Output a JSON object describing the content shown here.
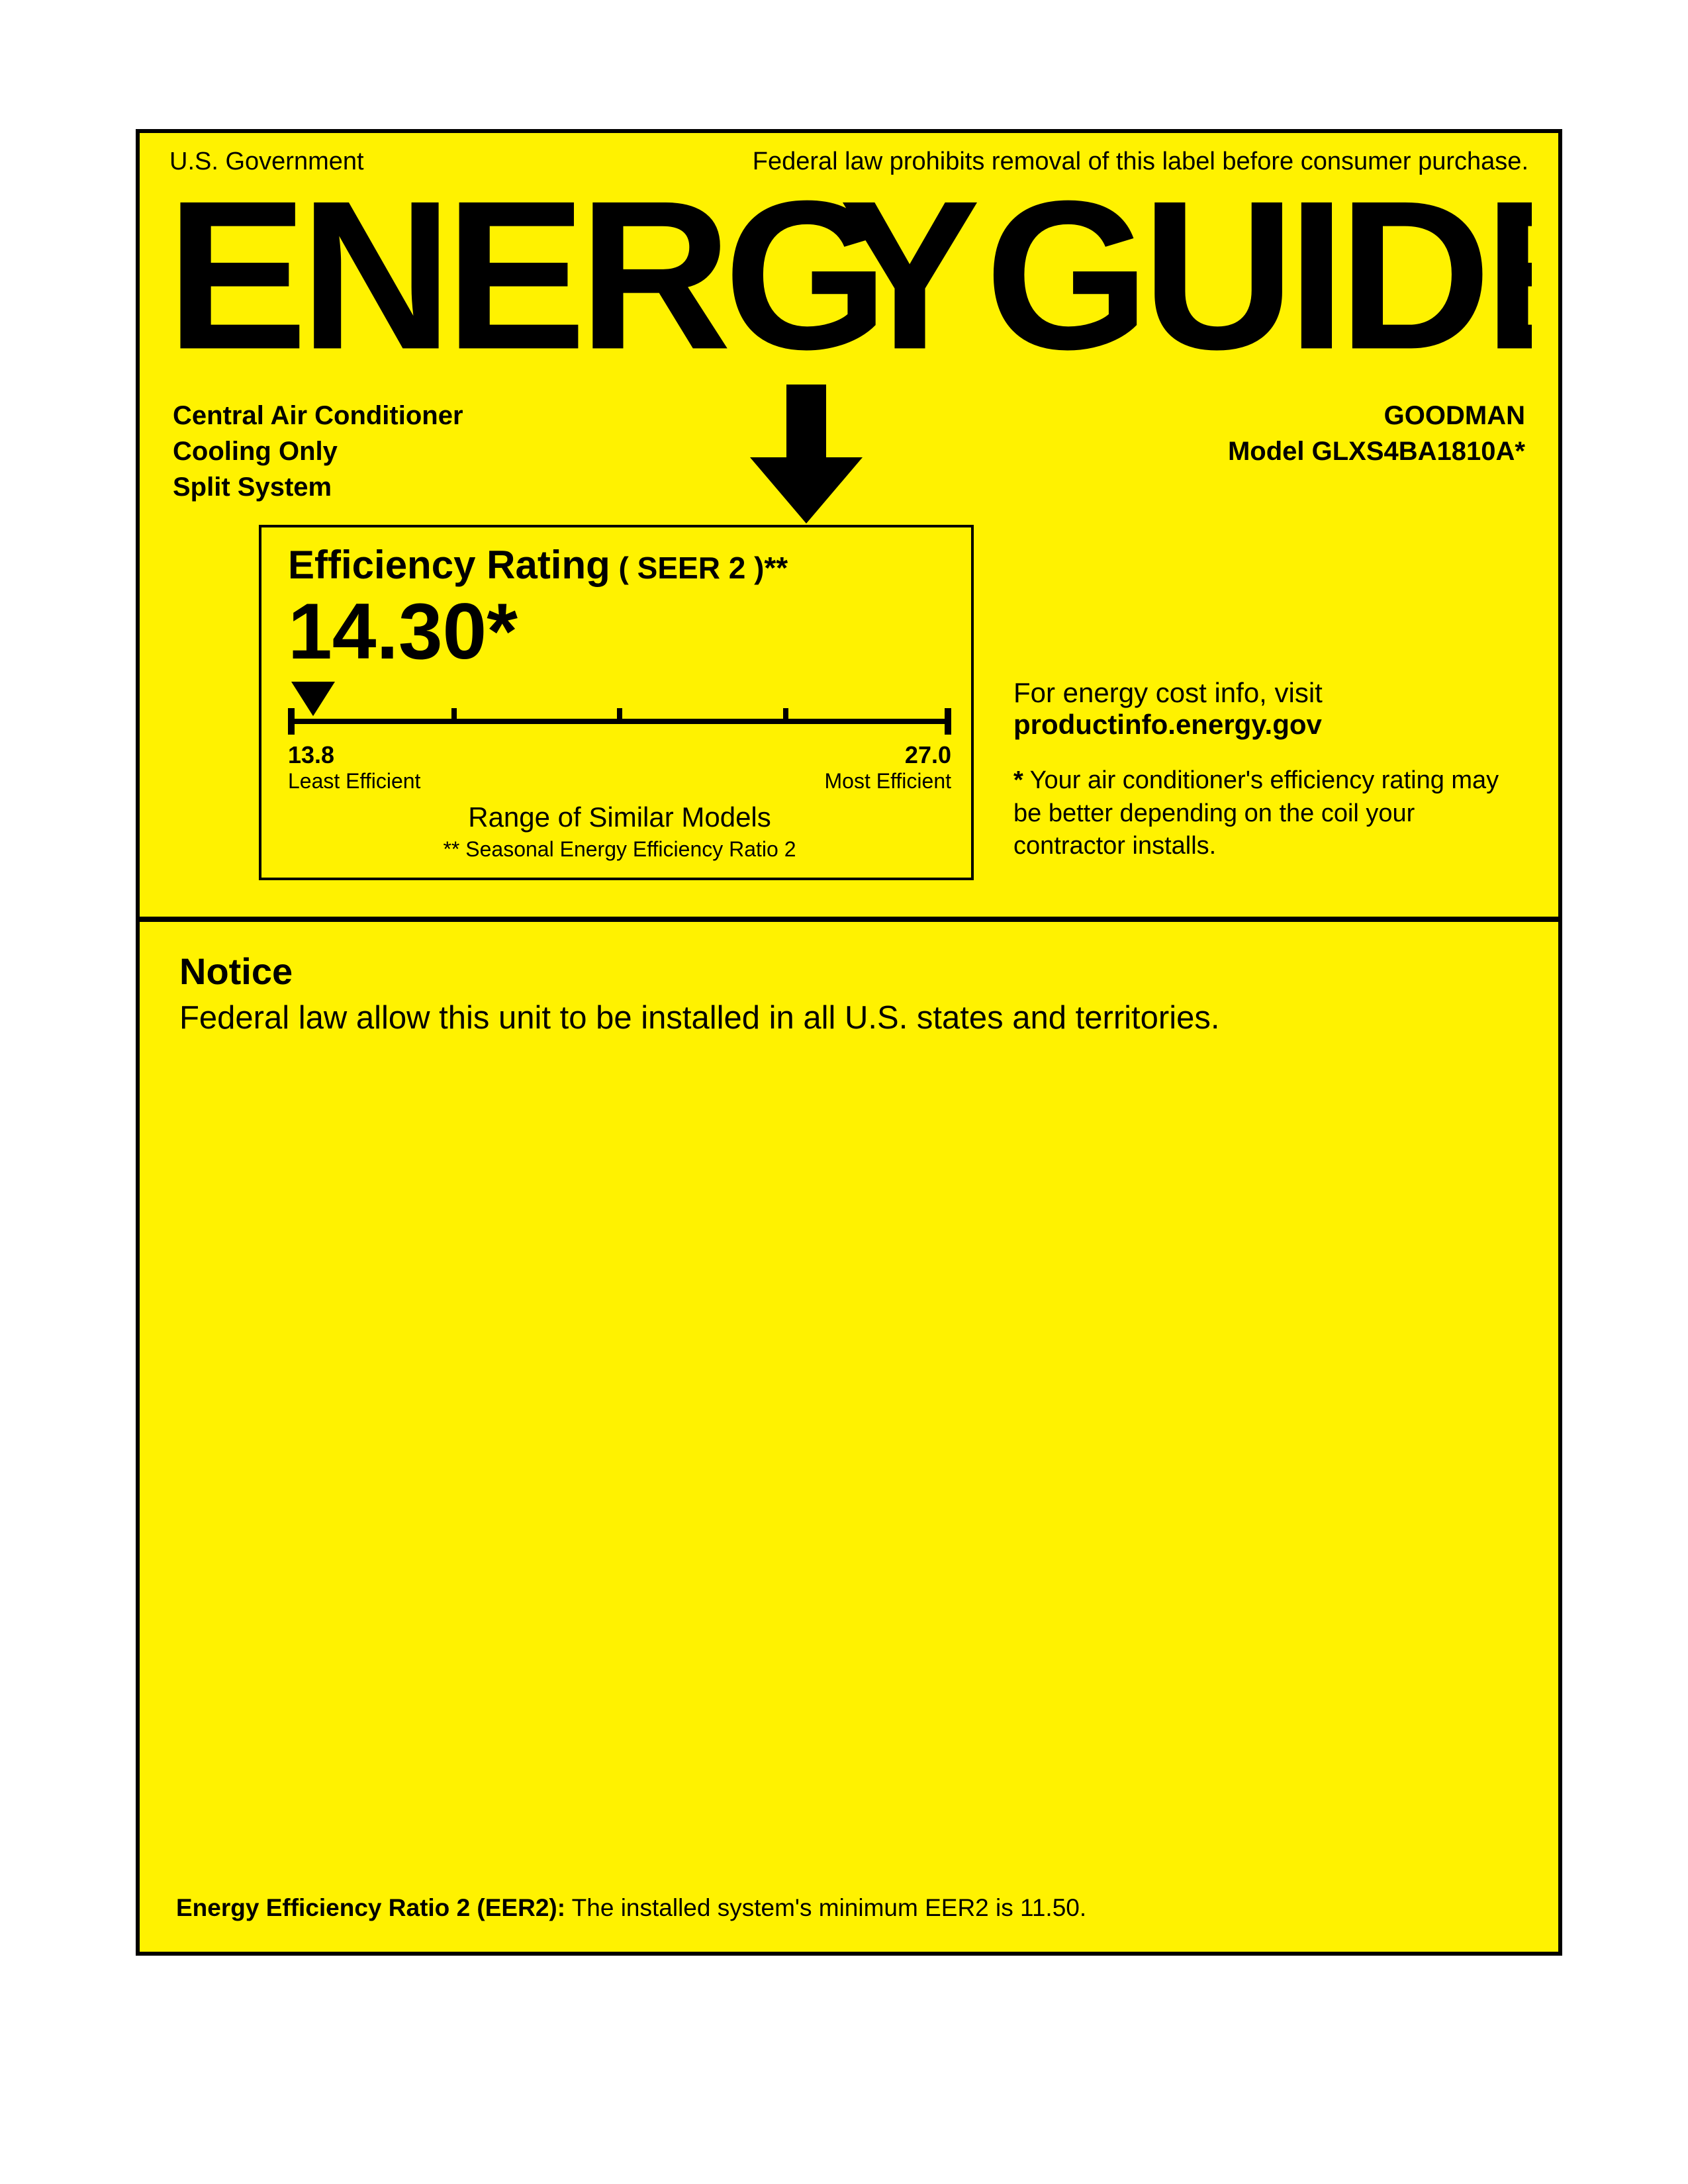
{
  "colors": {
    "background": "#fff200",
    "text": "#000000",
    "border": "#000000"
  },
  "header": {
    "left": "U.S. Government",
    "right": "Federal law prohibits removal of this label before consumer purchase."
  },
  "logo_text": "ENERGYGUIDE",
  "product": {
    "type_line1": "Central Air Conditioner",
    "type_line2": "Cooling Only",
    "type_line3": "Split System",
    "brand": "GOODMAN",
    "model_prefix": "Model ",
    "model": "GLXS4BA1810A*"
  },
  "rating": {
    "title": "Efficiency Rating",
    "title_suffix": " ( SEER 2 )**",
    "value": "14.30*",
    "scale": {
      "min": "13.8",
      "min_label": "Least Efficient",
      "max": "27.0",
      "max_label": "Most Efficient",
      "pointer_position_pct": 3.8,
      "tick_positions_pct": [
        25,
        50,
        75
      ]
    },
    "range_title": "Range of Similar Models",
    "range_sub": "** Seasonal Energy Efficiency Ratio 2"
  },
  "side": {
    "line1": "For energy cost info, visit",
    "url": "productinfo.energy.gov",
    "note_prefix": "*",
    "note": "  Your air conditioner's efficiency rating may be better depending on the coil your contractor installs."
  },
  "notice": {
    "title": "Notice",
    "text": "Federal law allow this unit to be installed in all U.S. states and territories."
  },
  "footer": {
    "bold": "Energy Efficiency Ratio 2 (EER2):",
    "text": " The installed system's minimum EER2 is 11.50."
  }
}
